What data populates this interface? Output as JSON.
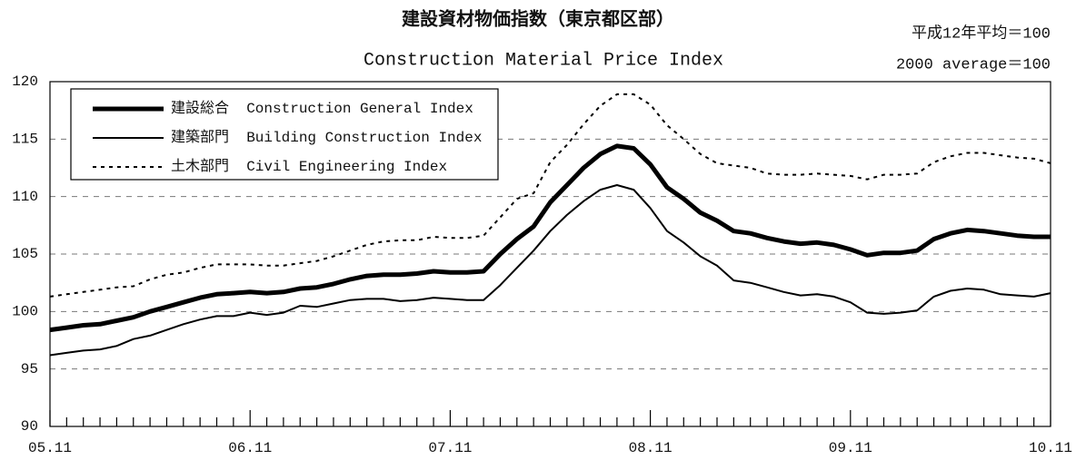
{
  "chart_data": {
    "type": "line",
    "title": "建設資材物価指数（東京都区部）",
    "subtitle": "Construction Material Price Index",
    "annotations": [
      "平成12年平均＝100",
      "2000 average＝100"
    ],
    "categories": [
      "05.11",
      null,
      null,
      null,
      null,
      null,
      null,
      null,
      null,
      null,
      null,
      null,
      "06.11",
      null,
      null,
      null,
      null,
      null,
      null,
      null,
      null,
      null,
      null,
      null,
      "07.11",
      null,
      null,
      null,
      null,
      null,
      null,
      null,
      null,
      null,
      null,
      null,
      "08.11",
      null,
      null,
      null,
      null,
      null,
      null,
      null,
      null,
      null,
      null,
      null,
      "09.11",
      null,
      null,
      null,
      null,
      null,
      null,
      null,
      null,
      null,
      null,
      null,
      "10.11"
    ],
    "series": [
      {
        "name": "建設総合  Construction General Index",
        "color": "#000000",
        "values": [
          98.4,
          98.6,
          98.8,
          98.9,
          99.2,
          99.5,
          100.0,
          100.4,
          100.8,
          101.2,
          101.5,
          101.6,
          101.7,
          101.6,
          101.7,
          102.0,
          102.1,
          102.4,
          102.8,
          103.1,
          103.2,
          103.2,
          103.3,
          103.5,
          103.4,
          103.4,
          103.5,
          105.0,
          106.3,
          107.4,
          109.5,
          111.0,
          112.5,
          113.7,
          114.4,
          114.2,
          112.8,
          110.8,
          109.8,
          108.6,
          107.9,
          107.0,
          106.8,
          106.4,
          106.1,
          105.9,
          106.0,
          105.8,
          105.4,
          104.9,
          105.1,
          105.1,
          105.3,
          106.3,
          106.8,
          107.1,
          107.0,
          106.8,
          106.6,
          106.5,
          106.5
        ]
      },
      {
        "name": "建築部門  Building Construction Index",
        "color": "#000000",
        "values": [
          96.2,
          96.4,
          96.6,
          96.7,
          97.0,
          97.6,
          97.9,
          98.4,
          98.9,
          99.3,
          99.6,
          99.6,
          99.9,
          99.7,
          99.9,
          100.5,
          100.4,
          100.7,
          101.0,
          101.1,
          101.1,
          100.9,
          101.0,
          101.2,
          101.1,
          101.0,
          101.0,
          102.3,
          103.8,
          105.3,
          107.0,
          108.4,
          109.6,
          110.6,
          111.0,
          110.6,
          109.0,
          107.0,
          106.0,
          104.8,
          104.0,
          102.7,
          102.5,
          102.1,
          101.7,
          101.4,
          101.5,
          101.3,
          100.8,
          99.9,
          99.8,
          99.9,
          100.1,
          101.3,
          101.8,
          102.0,
          101.9,
          101.5,
          101.4,
          101.3,
          101.6
        ]
      },
      {
        "name": "土木部門  Civil Engineering Index",
        "color": "#000000",
        "values": [
          101.3,
          101.5,
          101.7,
          101.9,
          102.1,
          102.2,
          102.8,
          103.2,
          103.4,
          103.8,
          104.1,
          104.1,
          104.1,
          104.0,
          104.0,
          104.2,
          104.4,
          104.8,
          105.3,
          105.8,
          106.1,
          106.2,
          106.2,
          106.5,
          106.4,
          106.4,
          106.6,
          108.2,
          109.8,
          110.3,
          113.0,
          114.5,
          116.3,
          117.9,
          118.9,
          118.9,
          118.0,
          116.2,
          115.0,
          113.7,
          112.9,
          112.7,
          112.5,
          112.0,
          111.9,
          111.9,
          112.0,
          111.9,
          111.8,
          111.5,
          111.9,
          111.9,
          112.0,
          113.0,
          113.5,
          113.8,
          113.8,
          113.6,
          113.4,
          113.3,
          112.9
        ]
      }
    ],
    "ylim": [
      90,
      120
    ],
    "yticks": [
      90,
      95,
      100,
      105,
      110,
      115,
      120
    ],
    "grid": true,
    "legend": "upper left"
  }
}
